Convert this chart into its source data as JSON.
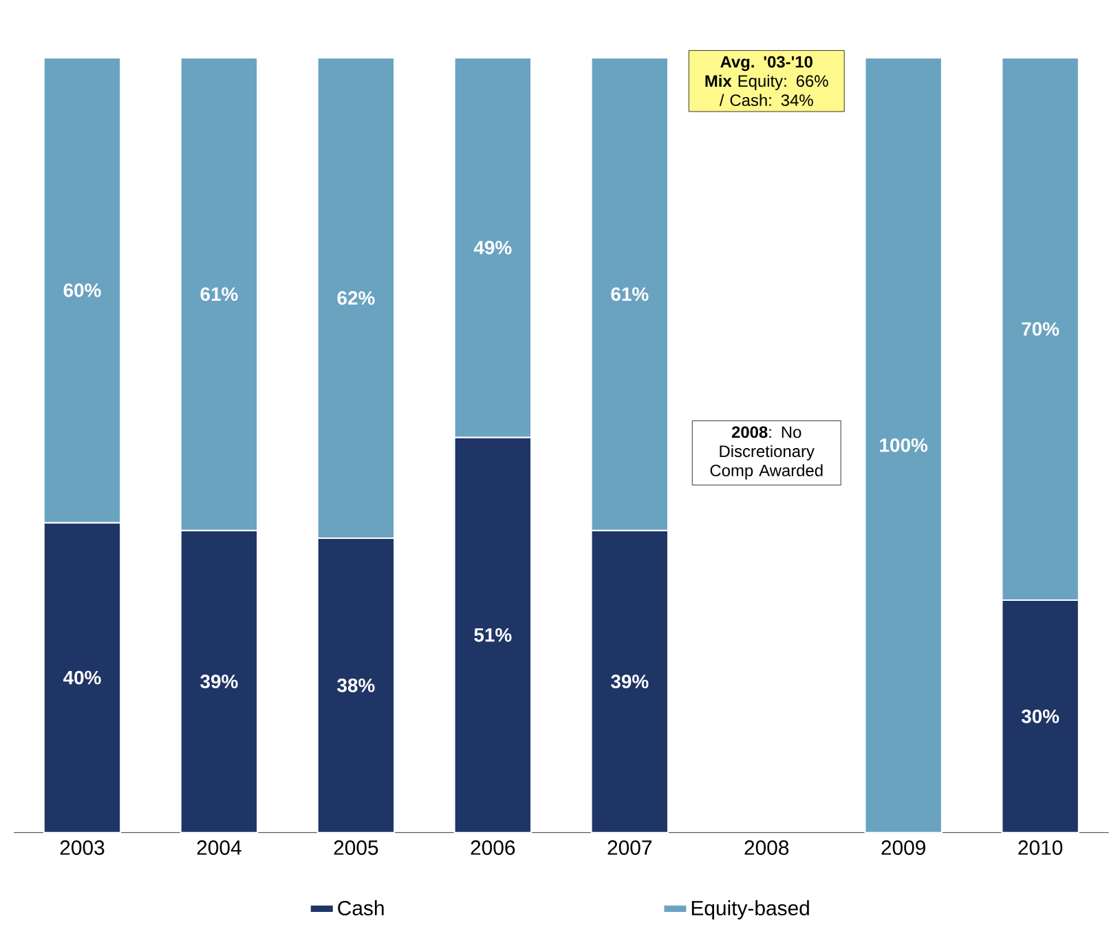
{
  "chart_data": {
    "type": "bar",
    "stacked": true,
    "categories": [
      "2003",
      "2004",
      "2005",
      "2006",
      "2007",
      "2008",
      "2009",
      "2010"
    ],
    "series": [
      {
        "name": "Cash",
        "color": "#1f3566",
        "values": [
          40,
          39,
          38,
          51,
          39,
          null,
          null,
          30
        ],
        "value_labels": [
          "40%",
          "39%",
          "38%",
          "51%",
          "39%",
          null,
          null,
          "30%"
        ]
      },
      {
        "name": "Equity-based",
        "color": "#6aa3c0",
        "values": [
          60,
          61,
          62,
          49,
          61,
          null,
          100,
          70
        ],
        "value_labels": [
          "60%",
          "61%",
          "62%",
          "49%",
          "61%",
          null,
          "100%",
          "70%"
        ]
      }
    ],
    "ylim": [
      0,
      100
    ],
    "tick_labels": "x",
    "legend": "bottom",
    "annotations": [
      "**Avg. '03-'10 Mix** Equity: 66% / Cash: 34%",
      "**2008**: No Discretionary Comp Awarded"
    ]
  }
}
